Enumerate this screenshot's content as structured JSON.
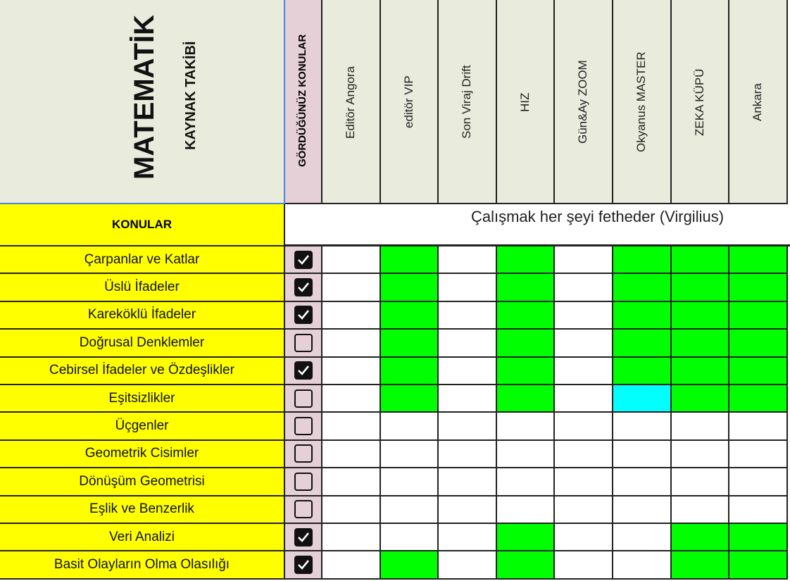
{
  "header": {
    "title": "MATEMATİK",
    "subtitle": "KAYNAK TAKİBİ",
    "seen_column": "GÖRDÜĞÜNÜZ KONULAR",
    "topics_label": "KONULAR",
    "motto": "Çalışmak her şeyi fetheder (Virgilius)"
  },
  "sources": [
    "Editör Angora",
    "editör VIP",
    "Son Viraj Drift",
    "HIZ",
    "Gün&Ay ZOOM",
    "Okyanus MASTER",
    "ZEKA KÜPÜ",
    "Ankara"
  ],
  "colors": {
    "green": "#00ff00",
    "cyan": "#00ffff",
    "white": "#ffffff",
    "topic_bg": "#ffff00",
    "seen_bg": "#e6d0d8",
    "header_bg": "#e9ecdc"
  },
  "rows": [
    {
      "topic": "Çarpanlar ve Katlar",
      "seen": true,
      "cells": [
        "white",
        "green",
        "white",
        "green",
        "white",
        "green",
        "green",
        "green"
      ]
    },
    {
      "topic": "Üslü İfadeler",
      "seen": true,
      "cells": [
        "white",
        "green",
        "white",
        "green",
        "white",
        "green",
        "green",
        "green"
      ]
    },
    {
      "topic": "Kareköklü İfadeler",
      "seen": true,
      "cells": [
        "white",
        "green",
        "white",
        "green",
        "white",
        "green",
        "green",
        "green"
      ]
    },
    {
      "topic": "Doğrusal Denklemler",
      "seen": false,
      "cells": [
        "white",
        "green",
        "white",
        "green",
        "white",
        "green",
        "green",
        "green"
      ]
    },
    {
      "topic": "Cebirsel İfadeler ve Özdeşlikler",
      "seen": true,
      "cells": [
        "white",
        "green",
        "white",
        "green",
        "white",
        "green",
        "green",
        "green"
      ]
    },
    {
      "topic": "Eşitsizlikler",
      "seen": false,
      "cells": [
        "white",
        "green",
        "white",
        "green",
        "white",
        "cyan",
        "green",
        "green"
      ]
    },
    {
      "topic": "Üçgenler",
      "seen": false,
      "cells": [
        "white",
        "white",
        "white",
        "white",
        "white",
        "white",
        "white",
        "white"
      ]
    },
    {
      "topic": "Geometrik Cisimler",
      "seen": false,
      "cells": [
        "white",
        "white",
        "white",
        "white",
        "white",
        "white",
        "white",
        "white"
      ]
    },
    {
      "topic": "Dönüşüm Geometrisi",
      "seen": false,
      "cells": [
        "white",
        "white",
        "white",
        "white",
        "white",
        "white",
        "white",
        "white"
      ]
    },
    {
      "topic": "Eşlik ve Benzerlik",
      "seen": false,
      "cells": [
        "white",
        "white",
        "white",
        "white",
        "white",
        "white",
        "white",
        "white"
      ]
    },
    {
      "topic": "Veri Analizi",
      "seen": true,
      "cells": [
        "white",
        "white",
        "white",
        "green",
        "white",
        "white",
        "green",
        "green"
      ]
    },
    {
      "topic": "Basit Olayların Olma Olasılığı",
      "seen": true,
      "cells": [
        "white",
        "green",
        "white",
        "green",
        "white",
        "white",
        "green",
        "green"
      ]
    }
  ]
}
